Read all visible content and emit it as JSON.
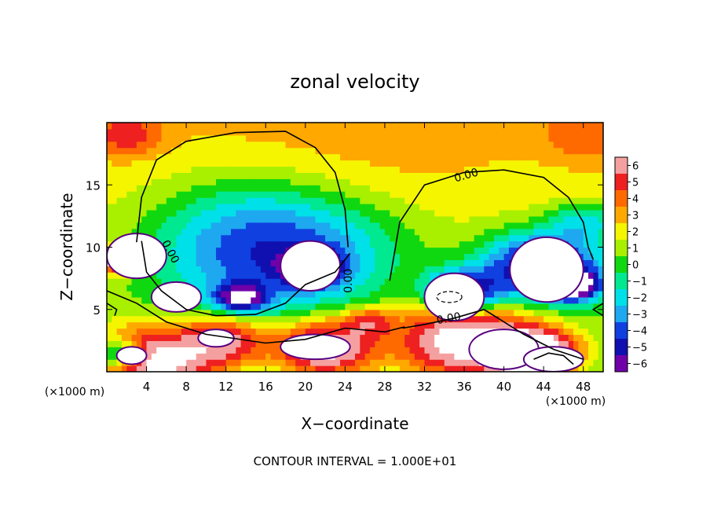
{
  "chart_data": {
    "type": "heatmap",
    "title": "zonal velocity",
    "xlabel": "X−coordinate",
    "ylabel": "Z−coordinate",
    "x_unit_left": "(×1000 m)",
    "x_unit_right": "(×1000 m)",
    "xlim": [
      0,
      50
    ],
    "ylim": [
      0,
      20
    ],
    "x_ticks": [
      4,
      8,
      12,
      16,
      20,
      24,
      28,
      32,
      36,
      40,
      44,
      48
    ],
    "y_ticks": [
      5,
      10,
      15
    ],
    "contour_label": "0.00",
    "footer": "CONTOUR INTERVAL = 1.000E+01",
    "colorbar": {
      "ticks": [
        6,
        5,
        4,
        3,
        2,
        1,
        0,
        -1,
        -2,
        -3,
        -4,
        -5,
        -6
      ],
      "tick_labels": [
        "6",
        "5",
        "4",
        "3",
        "2",
        "1",
        "0",
        "−1",
        "−2",
        "−3",
        "−4",
        "−5",
        "−6"
      ],
      "colors": [
        "#f5a0a0",
        "#ef2020",
        "#ff6a00",
        "#ffa800",
        "#f5f500",
        "#a8f000",
        "#10d810",
        "#00e890",
        "#00e0e8",
        "#1ea8f0",
        "#1040e0",
        "#1010b0",
        "#7000a8"
      ]
    },
    "features": [
      {
        "x": 5,
        "y": 0.9,
        "v": 5,
        "r": 7
      },
      {
        "x": 1.5,
        "y": 9,
        "v": 6,
        "r": 2.5
      },
      {
        "x": 12,
        "y": 2.5,
        "v": 4,
        "r": 5
      },
      {
        "x": 22,
        "y": 2,
        "v": 5,
        "r": 6
      },
      {
        "x": 26.5,
        "y": 4,
        "v": 3,
        "r": 3
      },
      {
        "x": 36,
        "y": 2.5,
        "v": 5,
        "r": 8
      },
      {
        "x": 43,
        "y": 1.5,
        "v": 6,
        "r": 5
      },
      {
        "x": 17,
        "y": 10,
        "v": -4,
        "r": 13
      },
      {
        "x": 20.5,
        "y": 8.5,
        "v": -6,
        "r": 3.5
      },
      {
        "x": 13.5,
        "y": 6,
        "v": -5,
        "r": 3
      },
      {
        "x": 36,
        "y": 6.5,
        "v": -5,
        "r": 4.5
      },
      {
        "x": 44,
        "y": 8.5,
        "v": -5,
        "r": 7
      },
      {
        "x": 47,
        "y": 7,
        "v": -6,
        "r": 3
      },
      {
        "x": 48,
        "y": 12,
        "v": -2,
        "r": 4
      },
      {
        "x": 1,
        "y": 1.5,
        "v": -3,
        "r": 3
      },
      {
        "x": 30,
        "y": 7,
        "v": 0,
        "r": 3
      },
      {
        "x": 26,
        "y": 18,
        "v": 1,
        "r": 14
      },
      {
        "x": 2,
        "y": 19,
        "v": 2.5,
        "r": 4
      },
      {
        "x": 48.5,
        "y": 19,
        "v": 2,
        "r": 5
      }
    ]
  }
}
